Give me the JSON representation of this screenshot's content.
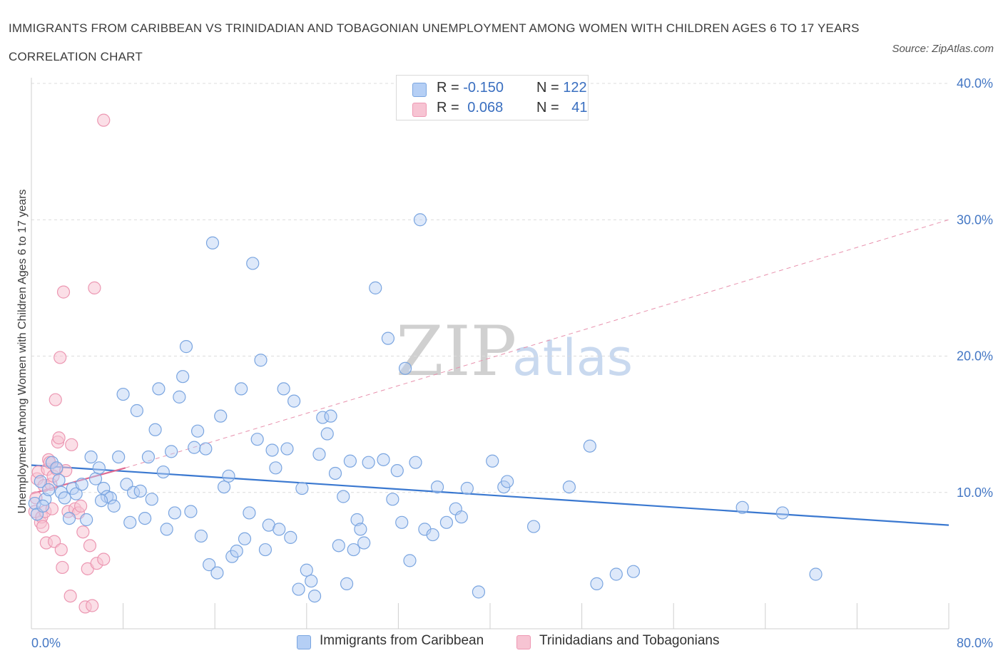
{
  "title": "IMMIGRANTS FROM CARIBBEAN VS TRINIDADIAN AND TOBAGONIAN UNEMPLOYMENT AMONG WOMEN WITH CHILDREN AGES 6 TO 17 YEARS CORRELATION CHART",
  "source": "Source: ZipAtlas.com",
  "watermark": {
    "zip": "ZIP",
    "atlas": "atlas"
  },
  "legend": {
    "rows": [
      {
        "r_label": "R = ",
        "r_value": "-0.150",
        "n_label": "N = ",
        "n_value": "122",
        "swatch_fill": "#b5cff5",
        "swatch_stroke": "#7aa5e0"
      },
      {
        "r_label": "R = ",
        "r_value": "0.068",
        "n_label": "N = ",
        "n_value": "41",
        "swatch_fill": "#f7c4d3",
        "swatch_stroke": "#ee98b3"
      }
    ]
  },
  "bottom_legend": [
    {
      "label": "Immigrants from Caribbean",
      "swatch_fill": "#b5cff5",
      "swatch_stroke": "#7aa5e0"
    },
    {
      "label": "Trinidadians and Tobagonians",
      "swatch_fill": "#f7c4d3",
      "swatch_stroke": "#ee98b3"
    }
  ],
  "chart_data": {
    "type": "scatter",
    "title": "IMMIGRANTS FROM CARIBBEAN VS TRINIDADIAN AND TOBAGONIAN UNEMPLOYMENT AMONG WOMEN WITH CHILDREN AGES 6 TO 17 YEARS CORRELATION CHART",
    "ylabel": "Unemployment Among Women with Children Ages 6 to 17 years",
    "xlim": [
      0,
      80
    ],
    "ylim": [
      0,
      40
    ],
    "x_tick_labels": [
      "0.0%",
      "80.0%"
    ],
    "y_ticks": [
      10,
      20,
      30,
      40
    ],
    "y_tick_labels": [
      "10.0%",
      "20.0%",
      "30.0%",
      "40.0%"
    ],
    "grid": "horizontal dashed",
    "legend_position": "top-center",
    "colors": {
      "caribbean": "#3a78d0",
      "trinidad": "#e06a92"
    },
    "series": [
      {
        "name": "Immigrants from Caribbean",
        "R": -0.15,
        "N": 122,
        "trend": {
          "x": [
            0,
            80
          ],
          "y": [
            12.0,
            7.6
          ],
          "style": "solid"
        },
        "points": [
          [
            0.3,
            9.2
          ],
          [
            0.5,
            8.4
          ],
          [
            0.8,
            10.8
          ],
          [
            1.2,
            9.5
          ],
          [
            1.5,
            10.2
          ],
          [
            1.8,
            12.2
          ],
          [
            2.2,
            11.8
          ],
          [
            2.6,
            10.0
          ],
          [
            2.9,
            9.6
          ],
          [
            3.3,
            8.1
          ],
          [
            3.6,
            10.3
          ],
          [
            3.9,
            9.9
          ],
          [
            4.4,
            10.6
          ],
          [
            4.8,
            8.0
          ],
          [
            5.2,
            12.6
          ],
          [
            5.6,
            11.0
          ],
          [
            5.9,
            11.8
          ],
          [
            6.3,
            10.3
          ],
          [
            6.6,
            9.7
          ],
          [
            6.9,
            9.6
          ],
          [
            7.2,
            9.0
          ],
          [
            7.6,
            12.6
          ],
          [
            8.0,
            17.2
          ],
          [
            8.3,
            10.6
          ],
          [
            8.6,
            7.8
          ],
          [
            8.9,
            10.0
          ],
          [
            9.2,
            16.0
          ],
          [
            9.5,
            10.1
          ],
          [
            9.9,
            8.1
          ],
          [
            10.2,
            12.6
          ],
          [
            10.5,
            9.5
          ],
          [
            10.8,
            14.6
          ],
          [
            11.1,
            17.6
          ],
          [
            11.5,
            11.5
          ],
          [
            11.8,
            7.3
          ],
          [
            12.2,
            13.0
          ],
          [
            12.5,
            8.5
          ],
          [
            12.9,
            17.0
          ],
          [
            13.2,
            18.5
          ],
          [
            13.5,
            20.7
          ],
          [
            13.9,
            8.6
          ],
          [
            14.2,
            13.3
          ],
          [
            14.5,
            14.5
          ],
          [
            14.8,
            6.8
          ],
          [
            15.2,
            13.2
          ],
          [
            15.5,
            4.7
          ],
          [
            15.8,
            28.3
          ],
          [
            16.2,
            4.1
          ],
          [
            16.5,
            15.6
          ],
          [
            16.8,
            10.4
          ],
          [
            17.2,
            11.2
          ],
          [
            17.5,
            5.3
          ],
          [
            17.9,
            5.7
          ],
          [
            18.3,
            17.6
          ],
          [
            18.6,
            6.6
          ],
          [
            19.0,
            8.5
          ],
          [
            19.3,
            26.8
          ],
          [
            19.7,
            13.9
          ],
          [
            20.0,
            19.7
          ],
          [
            20.4,
            5.8
          ],
          [
            20.7,
            7.6
          ],
          [
            21.0,
            13.1
          ],
          [
            21.3,
            11.8
          ],
          [
            21.6,
            7.3
          ],
          [
            22.0,
            17.6
          ],
          [
            22.3,
            13.2
          ],
          [
            22.6,
            6.7
          ],
          [
            22.9,
            16.7
          ],
          [
            23.3,
            2.9
          ],
          [
            23.6,
            10.3
          ],
          [
            24.0,
            4.3
          ],
          [
            24.4,
            3.5
          ],
          [
            24.7,
            2.4
          ],
          [
            25.1,
            12.8
          ],
          [
            25.4,
            15.5
          ],
          [
            25.8,
            14.3
          ],
          [
            26.1,
            15.6
          ],
          [
            26.5,
            11.4
          ],
          [
            26.8,
            6.1
          ],
          [
            27.2,
            9.7
          ],
          [
            27.5,
            3.3
          ],
          [
            27.8,
            12.3
          ],
          [
            28.1,
            5.8
          ],
          [
            28.4,
            8.0
          ],
          [
            28.7,
            7.3
          ],
          [
            29.0,
            6.3
          ],
          [
            29.4,
            12.2
          ],
          [
            30.0,
            25.0
          ],
          [
            30.7,
            12.4
          ],
          [
            31.1,
            21.3
          ],
          [
            31.5,
            9.5
          ],
          [
            31.9,
            11.6
          ],
          [
            32.3,
            7.8
          ],
          [
            32.6,
            19.1
          ],
          [
            33.0,
            5.0
          ],
          [
            33.5,
            12.2
          ],
          [
            33.9,
            30.0
          ],
          [
            34.3,
            7.3
          ],
          [
            35.0,
            6.9
          ],
          [
            35.4,
            10.4
          ],
          [
            36.2,
            7.8
          ],
          [
            37.0,
            8.8
          ],
          [
            37.5,
            8.2
          ],
          [
            38.0,
            10.3
          ],
          [
            39.0,
            2.7
          ],
          [
            40.2,
            12.3
          ],
          [
            41.2,
            10.4
          ],
          [
            41.5,
            10.8
          ],
          [
            43.8,
            7.5
          ],
          [
            46.9,
            10.4
          ],
          [
            48.7,
            13.4
          ],
          [
            49.3,
            3.3
          ],
          [
            51.0,
            4.0
          ],
          [
            52.5,
            4.2
          ],
          [
            62.0,
            8.9
          ],
          [
            65.5,
            8.5
          ],
          [
            68.4,
            4.0
          ],
          [
            1.0,
            9.0
          ],
          [
            2.4,
            10.9
          ],
          [
            6.1,
            9.4
          ]
        ]
      },
      {
        "name": "Trinidadians and Tobagonians",
        "R": 0.068,
        "N": 41,
        "trend": {
          "x": [
            0,
            8.2
          ],
          "y": [
            9.9,
            11.8
          ],
          "x_extended": 80,
          "y_extended": 30.0,
          "style": "solid then dashed"
        },
        "points": [
          [
            0.3,
            8.6
          ],
          [
            0.4,
            9.6
          ],
          [
            0.5,
            11.0
          ],
          [
            0.6,
            11.5
          ],
          [
            0.8,
            7.8
          ],
          [
            0.9,
            8.2
          ],
          [
            1.0,
            7.5
          ],
          [
            1.1,
            10.5
          ],
          [
            1.2,
            8.6
          ],
          [
            1.3,
            6.3
          ],
          [
            1.4,
            11.7
          ],
          [
            1.5,
            12.4
          ],
          [
            1.6,
            12.2
          ],
          [
            1.7,
            10.6
          ],
          [
            1.8,
            8.8
          ],
          [
            1.9,
            11.2
          ],
          [
            2.0,
            6.4
          ],
          [
            2.1,
            16.8
          ],
          [
            2.2,
            11.7
          ],
          [
            2.3,
            13.7
          ],
          [
            2.4,
            14.0
          ],
          [
            2.5,
            19.9
          ],
          [
            2.6,
            5.8
          ],
          [
            2.7,
            4.5
          ],
          [
            2.8,
            24.7
          ],
          [
            3.0,
            11.6
          ],
          [
            3.2,
            8.6
          ],
          [
            3.4,
            2.4
          ],
          [
            3.5,
            13.5
          ],
          [
            3.8,
            8.8
          ],
          [
            4.1,
            8.5
          ],
          [
            4.3,
            9.0
          ],
          [
            4.5,
            7.1
          ],
          [
            4.7,
            1.6
          ],
          [
            4.9,
            4.4
          ],
          [
            5.1,
            6.1
          ],
          [
            5.3,
            1.7
          ],
          [
            5.5,
            25.0
          ],
          [
            5.7,
            4.8
          ],
          [
            6.3,
            5.1
          ],
          [
            6.3,
            37.3
          ]
        ]
      }
    ]
  }
}
